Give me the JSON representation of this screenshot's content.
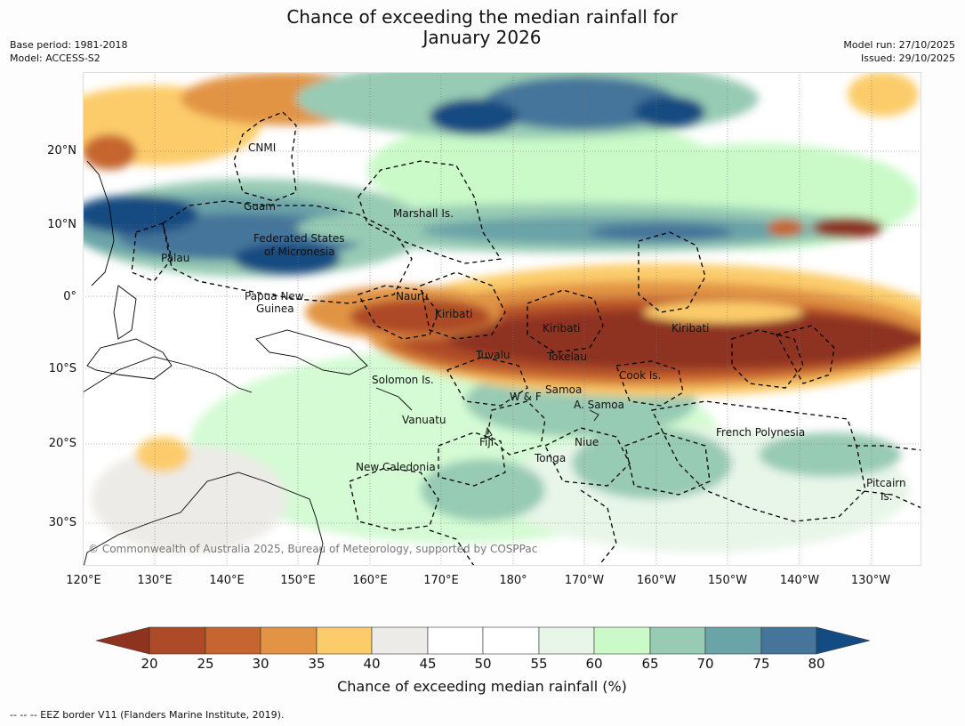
{
  "header": {
    "title_line1": "Chance of exceeding the median rainfall for",
    "title_line2": "January 2026",
    "base_period": "Base period: 1981-2018",
    "model": "Model: ACCESS-S2",
    "model_run": "Model run: 27/10/2025",
    "issued": "Issued: 29/10/2025"
  },
  "map": {
    "lat_ticks": [
      "20°N",
      "10°N",
      "0°",
      "10°S",
      "20°S",
      "30°S"
    ],
    "lon_ticks": [
      "120°E",
      "130°E",
      "140°E",
      "150°E",
      "160°E",
      "170°E",
      "180°",
      "170°W",
      "160°W",
      "150°W",
      "140°W",
      "130°W"
    ],
    "regions": [
      {
        "name": "CNMI"
      },
      {
        "name": "Guam"
      },
      {
        "name": "Marshall Is."
      },
      {
        "name": "Federated States"
      },
      {
        "name": "of Micronesia"
      },
      {
        "name": "Palau"
      },
      {
        "name": "Papua New"
      },
      {
        "name": "Guinea"
      },
      {
        "name": "Nauru"
      },
      {
        "name": "Kiribati"
      },
      {
        "name": "Kiribati"
      },
      {
        "name": "Kiribati"
      },
      {
        "name": "Tuvalu"
      },
      {
        "name": "Tokelau"
      },
      {
        "name": "Cook Is."
      },
      {
        "name": "Solomon Is."
      },
      {
        "name": "Samoa"
      },
      {
        "name": "W & F"
      },
      {
        "name": "A. Samoa"
      },
      {
        "name": "Vanuatu"
      },
      {
        "name": "Fiji"
      },
      {
        "name": "Niue"
      },
      {
        "name": "French Polynesia"
      },
      {
        "name": "Tonga"
      },
      {
        "name": "New Caledonia"
      },
      {
        "name": "Pitcairn"
      },
      {
        "name": "Is."
      }
    ],
    "copyright": "© Commonwealth of Australia 2025, Bureau of Meteorology, supported by COSPPac"
  },
  "colorbar": {
    "ticks": [
      "20",
      "25",
      "30",
      "35",
      "40",
      "45",
      "50",
      "55",
      "60",
      "65",
      "70",
      "75",
      "80"
    ],
    "colors": [
      "#8e3320",
      "#ad4a27",
      "#c6652f",
      "#e29444",
      "#fccc6a",
      "#ecebe7",
      "#ffffff",
      "#ffffff",
      "#e8f6e8",
      "#c9fac8",
      "#98cbb4",
      "#6aa3a8",
      "#45759a",
      "#124c82"
    ],
    "label": "Chance of exceeding median rainfall (%)"
  },
  "footnote": "--  --  -- EEZ border V11 (Flanders Marine Institute, 2019)."
}
